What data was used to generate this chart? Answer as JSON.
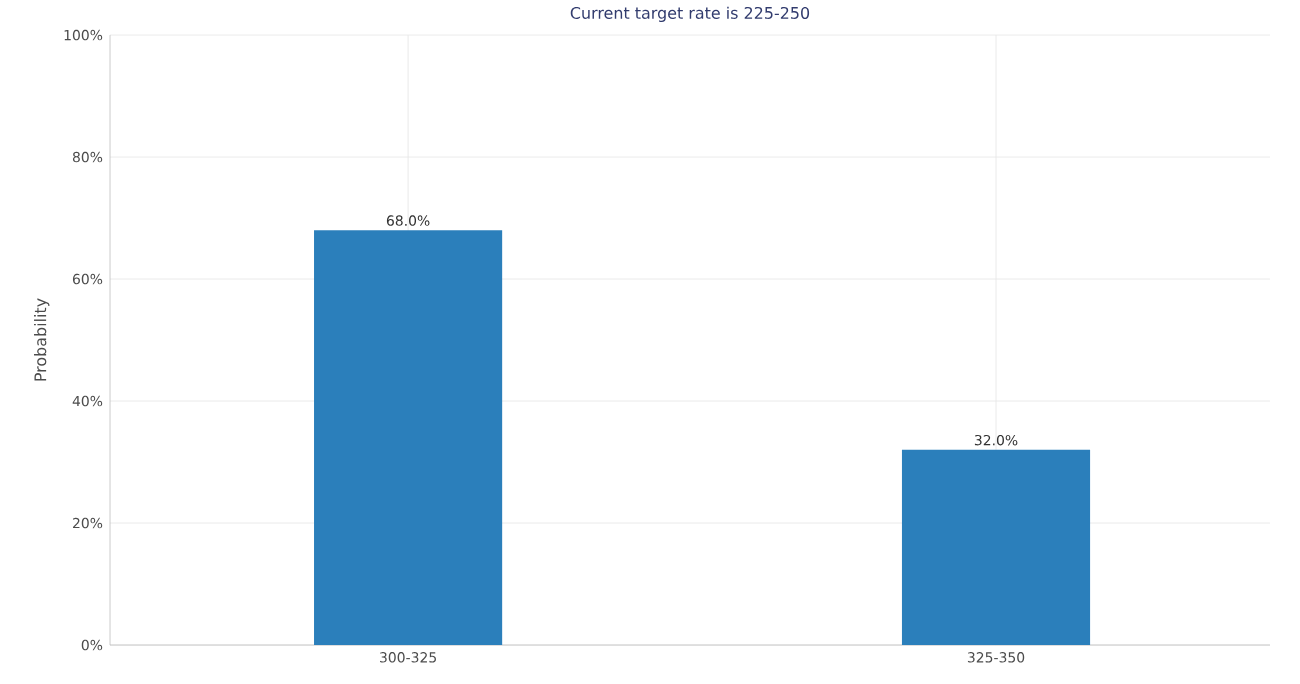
{
  "chart_data": {
    "type": "bar",
    "title": "Current target rate is 225-250",
    "ylabel": "Probability",
    "categories": [
      "300-325",
      "325-350"
    ],
    "values": [
      68.0,
      32.0
    ],
    "value_labels": [
      "68.0%",
      "32.0%"
    ],
    "color": "#2b7fbb",
    "ylim": [
      0,
      100
    ],
    "yticks": [
      {
        "value": 0,
        "label": "0%"
      },
      {
        "value": 20,
        "label": "20%"
      },
      {
        "value": 40,
        "label": "40%"
      },
      {
        "value": 60,
        "label": "60%"
      },
      {
        "value": 80,
        "label": "80%"
      },
      {
        "value": 100,
        "label": "100%"
      }
    ],
    "grid": true
  }
}
